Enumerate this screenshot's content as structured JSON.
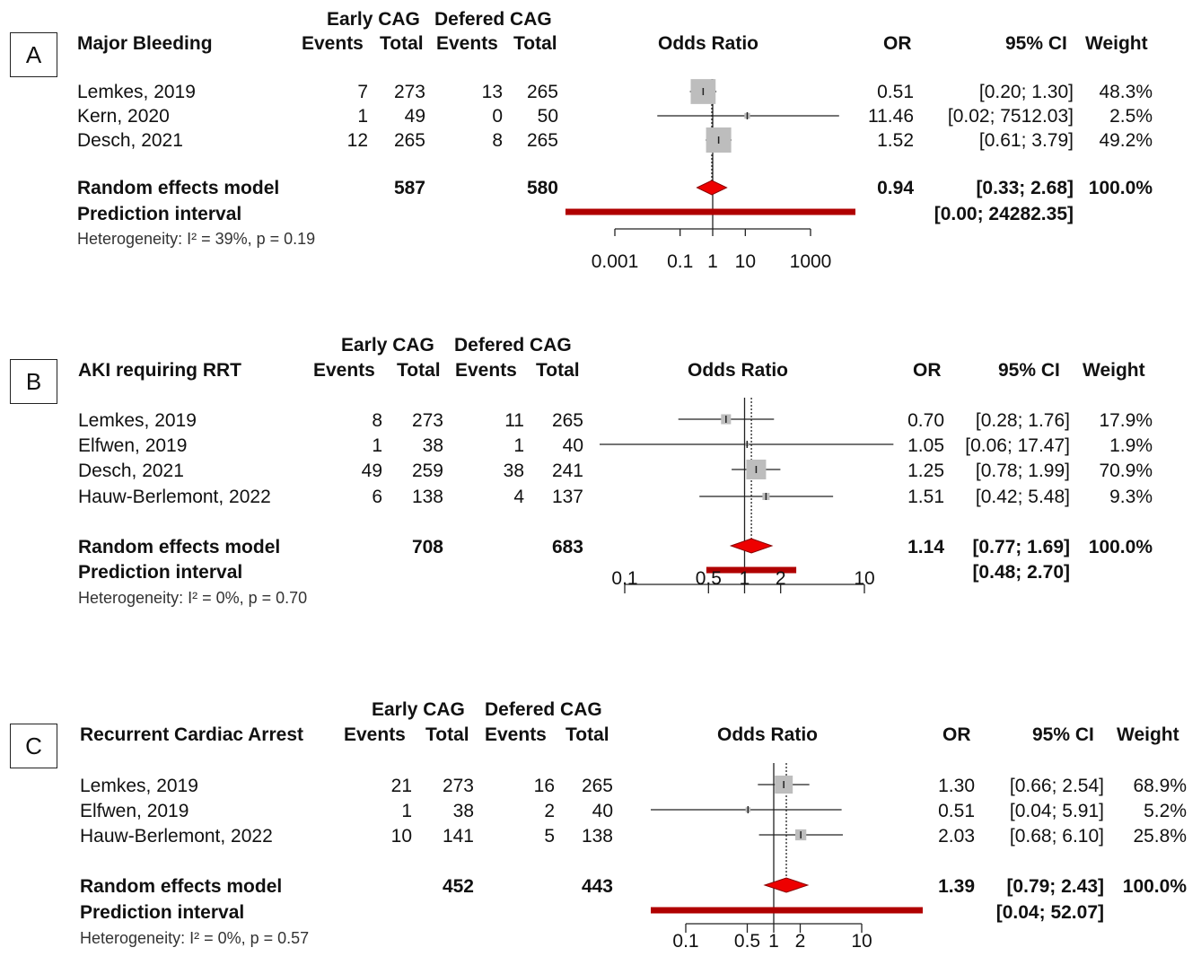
{
  "panels": [
    {
      "letter": "A",
      "outcome": "Major Bleeding",
      "group1": "Early CAG",
      "group2": "Defered CAG",
      "events_label": "Events",
      "total_label": "Total",
      "plot_label": "Odds Ratio",
      "or_label": "OR",
      "ci_label": "95% CI",
      "weight_label": "Weight",
      "studies": [
        {
          "study": "Lemkes, 2019",
          "e1": "7",
          "t1": "273",
          "e2": "13",
          "t2": "265",
          "or": "0.51",
          "ci": "[0.20;   1.30]",
          "weight": "48.3%"
        },
        {
          "study": "Kern, 2020",
          "e1": "1",
          "t1": "49",
          "e2": "0",
          "t2": "50",
          "or": "11.46",
          "ci": "[0.02; 7512.03]",
          "weight": "2.5%"
        },
        {
          "study": "Desch, 2021",
          "e1": "12",
          "t1": "265",
          "e2": "8",
          "t2": "265",
          "or": "1.52",
          "ci": "[0.61;   3.79]",
          "weight": "49.2%"
        }
      ],
      "model_label": "Random effects model",
      "model_t1": "587",
      "model_t2": "580",
      "model_or": "0.94",
      "model_ci": "[0.33;   2.68]",
      "model_weight": "100.0%",
      "pi_label": "Prediction interval",
      "pi_ci": "[0.00; 24282.35]",
      "heterogeneity": "Heterogeneity: I² = 39%, p = 0.19",
      "ticks": [
        "0.001",
        "0.1",
        "1",
        "10",
        "1000"
      ]
    },
    {
      "letter": "B",
      "outcome": "AKI requiring RRT",
      "group1": "Early CAG",
      "group2": "Defered CAG",
      "events_label": "Events",
      "total_label": "Total",
      "plot_label": "Odds Ratio",
      "or_label": "OR",
      "ci_label": "95% CI",
      "weight_label": "Weight",
      "studies": [
        {
          "study": "Lemkes, 2019",
          "e1": "8",
          "t1": "273",
          "e2": "11",
          "t2": "265",
          "or": "0.70",
          "ci": "[0.28;  1.76]",
          "weight": "17.9%"
        },
        {
          "study": "Elfwen, 2019",
          "e1": "1",
          "t1": "38",
          "e2": "1",
          "t2": "40",
          "or": "1.05",
          "ci": "[0.06; 17.47]",
          "weight": "1.9%"
        },
        {
          "study": "Desch, 2021",
          "e1": "49",
          "t1": "259",
          "e2": "38",
          "t2": "241",
          "or": "1.25",
          "ci": "[0.78;  1.99]",
          "weight": "70.9%"
        },
        {
          "study": "Hauw-Berlemont, 2022",
          "e1": "6",
          "t1": "138",
          "e2": "4",
          "t2": "137",
          "or": "1.51",
          "ci": "[0.42;  5.48]",
          "weight": "9.3%"
        }
      ],
      "model_label": "Random effects model",
      "model_t1": "708",
      "model_t2": "683",
      "model_or": "1.14",
      "model_ci": "[0.77;  1.69]",
      "model_weight": "100.0%",
      "pi_label": "Prediction interval",
      "pi_ci": "[0.48;  2.70]",
      "heterogeneity": "Heterogeneity: I² = 0%, p = 0.70",
      "ticks": [
        "0.1",
        "0.5",
        "1",
        "2",
        "10"
      ]
    },
    {
      "letter": "C",
      "outcome": "Recurrent Cardiac Arrest",
      "group1": "Early CAG",
      "group2": "Defered CAG",
      "events_label": "Events",
      "total_label": "Total",
      "plot_label": "Odds Ratio",
      "or_label": "OR",
      "ci_label": "95% CI",
      "weight_label": "Weight",
      "studies": [
        {
          "study": "Lemkes, 2019",
          "e1": "21",
          "t1": "273",
          "e2": "16",
          "t2": "265",
          "or": "1.30",
          "ci": "[0.66;  2.54]",
          "weight": "68.9%"
        },
        {
          "study": "Elfwen, 2019",
          "e1": "1",
          "t1": "38",
          "e2": "2",
          "t2": "40",
          "or": "0.51",
          "ci": "[0.04;  5.91]",
          "weight": "5.2%"
        },
        {
          "study": "Hauw-Berlemont, 2022",
          "e1": "10",
          "t1": "141",
          "e2": "5",
          "t2": "138",
          "or": "2.03",
          "ci": "[0.68;  6.10]",
          "weight": "25.8%"
        }
      ],
      "model_label": "Random effects model",
      "model_t1": "452",
      "model_t2": "443",
      "model_or": "1.39",
      "model_ci": "[0.79;  2.43]",
      "model_weight": "100.0%",
      "pi_label": "Prediction interval",
      "pi_ci": "[0.04; 52.07]",
      "heterogeneity": "Heterogeneity: I² = 0%, p = 0.57",
      "ticks": [
        "0.1",
        "0.5",
        "1",
        "2",
        "10"
      ]
    }
  ],
  "chart_data": [
    {
      "type": "forest",
      "outcome": "Major Bleeding",
      "scale": "log",
      "xlim": [
        0.001,
        1000
      ],
      "ticks": [
        0.001,
        0.1,
        1,
        10,
        1000
      ],
      "studies": [
        {
          "name": "Lemkes, 2019",
          "or": 0.51,
          "lo": 0.2,
          "hi": 1.3,
          "weight": 48.3
        },
        {
          "name": "Kern, 2020",
          "or": 11.46,
          "lo": 0.02,
          "hi": 7512.03,
          "weight": 2.5
        },
        {
          "name": "Desch, 2021",
          "or": 1.52,
          "lo": 0.61,
          "hi": 3.79,
          "weight": 49.2
        }
      ],
      "pooled": {
        "or": 0.94,
        "lo": 0.33,
        "hi": 2.68
      },
      "prediction_interval": [
        0.0,
        24282.35
      ]
    },
    {
      "type": "forest",
      "outcome": "AKI requiring RRT",
      "scale": "log",
      "xlim": [
        0.1,
        10
      ],
      "ticks": [
        0.1,
        0.5,
        1,
        2,
        10
      ],
      "studies": [
        {
          "name": "Lemkes, 2019",
          "or": 0.7,
          "lo": 0.28,
          "hi": 1.76,
          "weight": 17.9
        },
        {
          "name": "Elfwen, 2019",
          "or": 1.05,
          "lo": 0.06,
          "hi": 17.47,
          "weight": 1.9
        },
        {
          "name": "Desch, 2021",
          "or": 1.25,
          "lo": 0.78,
          "hi": 1.99,
          "weight": 70.9
        },
        {
          "name": "Hauw-Berlemont, 2022",
          "or": 1.51,
          "lo": 0.42,
          "hi": 5.48,
          "weight": 9.3
        }
      ],
      "pooled": {
        "or": 1.14,
        "lo": 0.77,
        "hi": 1.69
      },
      "prediction_interval": [
        0.48,
        2.7
      ]
    },
    {
      "type": "forest",
      "outcome": "Recurrent Cardiac Arrest",
      "scale": "log",
      "xlim": [
        0.1,
        10
      ],
      "ticks": [
        0.1,
        0.5,
        1,
        2,
        10
      ],
      "studies": [
        {
          "name": "Lemkes, 2019",
          "or": 1.3,
          "lo": 0.66,
          "hi": 2.54,
          "weight": 68.9
        },
        {
          "name": "Elfwen, 2019",
          "or": 0.51,
          "lo": 0.04,
          "hi": 5.91,
          "weight": 5.2
        },
        {
          "name": "Hauw-Berlemont, 2022",
          "or": 2.03,
          "lo": 0.68,
          "hi": 6.1,
          "weight": 25.8
        }
      ],
      "pooled": {
        "or": 1.39,
        "lo": 0.79,
        "hi": 2.43
      },
      "prediction_interval": [
        0.04,
        52.07
      ]
    }
  ]
}
